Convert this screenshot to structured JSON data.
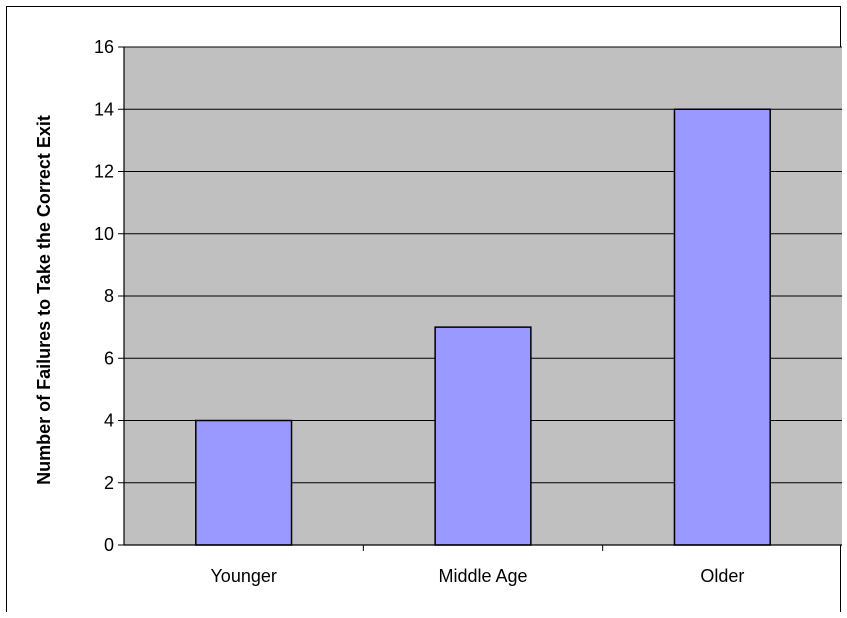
{
  "chart_data": {
    "type": "bar",
    "title": "",
    "xlabel": "",
    "ylabel": "Number of Failures to Take the Correct Exit",
    "categories": [
      "Younger",
      "Middle Age",
      "Older"
    ],
    "values": [
      4,
      7,
      14
    ],
    "ylim": [
      0,
      16
    ],
    "yticks": [
      0,
      2,
      4,
      6,
      8,
      10,
      12,
      14,
      16
    ],
    "grid": true,
    "legend": "none",
    "colors": {
      "bar_fill": "#9999ff",
      "bar_stroke": "#000000",
      "plot_background": "#c0c0c0",
      "gridline": "#000000"
    }
  }
}
